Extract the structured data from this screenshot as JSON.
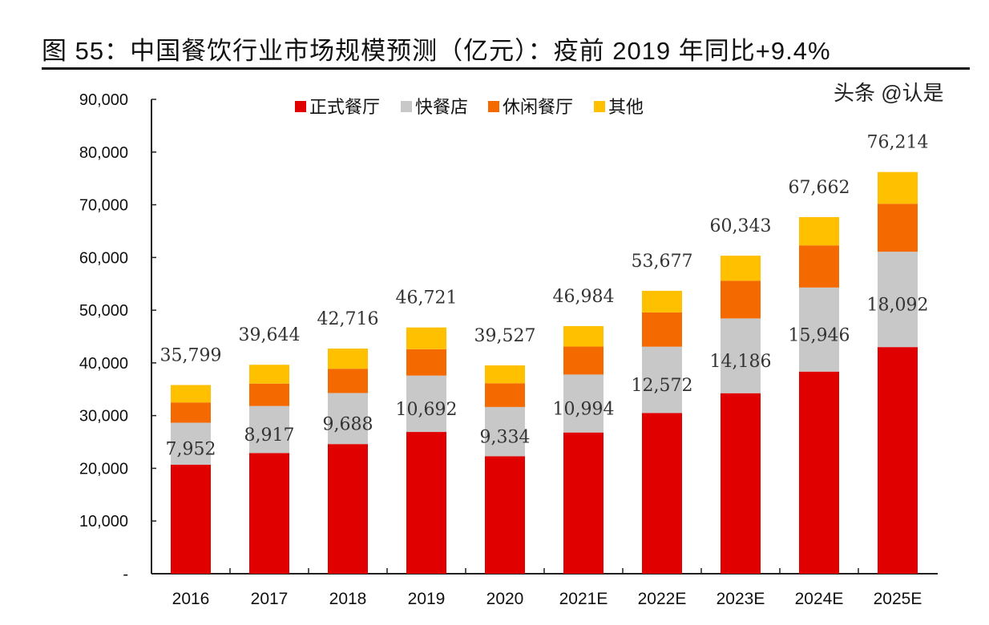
{
  "title": "图 55：中国餐饮行业市场规模预测（亿元）：疫前 2019 年同比+9.4%",
  "watermark": "头条 @认是",
  "chart_data": {
    "type": "bar",
    "stacked": true,
    "title": "图 55：中国餐饮行业市场规模预测（亿元）：疫前 2019 年同比+9.4%",
    "xlabel": "",
    "ylabel": "",
    "ylim": [
      0,
      90000
    ],
    "yticks": [
      0,
      10000,
      20000,
      30000,
      40000,
      50000,
      60000,
      70000,
      80000,
      90000
    ],
    "ytick_labels": [
      "-",
      "10,000",
      "20,000",
      "30,000",
      "40,000",
      "50,000",
      "60,000",
      "70,000",
      "80,000",
      "90,000"
    ],
    "grid": false,
    "legend_position": "top",
    "categories": [
      "2016",
      "2017",
      "2018",
      "2019",
      "2020",
      "2021E",
      "2022E",
      "2023E",
      "2024E",
      "2025E"
    ],
    "series": [
      {
        "name": "正式餐厅",
        "color": "#E00000",
        "values": [
          20700,
          22900,
          24600,
          26900,
          22300,
          26800,
          30500,
          34250,
          38350,
          43000
        ]
      },
      {
        "name": "快餐店",
        "color": "#C8C8C8",
        "values": [
          7952,
          8917,
          9688,
          10692,
          9334,
          10994,
          12572,
          14186,
          15946,
          18092
        ]
      },
      {
        "name": "休闲餐厅",
        "color": "#F46A00",
        "values": [
          3848,
          4250,
          4600,
          5000,
          4500,
          5300,
          6500,
          7150,
          8000,
          9100
        ]
      },
      {
        "name": "其他",
        "color": "#FFC000",
        "values": [
          3299,
          3577,
          3828,
          4129,
          3393,
          3890,
          4105,
          4757,
          5366,
          6022
        ]
      }
    ],
    "total_labels": [
      "35,799",
      "39,644",
      "42,716",
      "46,721",
      "39,527",
      "46,984",
      "53,677",
      "60,343",
      "67,662",
      "76,214"
    ],
    "segment_labels_series": "快餐店",
    "segment_labels": [
      "7,952",
      "8,917",
      "9,688",
      "10,692",
      "9,334",
      "10,994",
      "12,572",
      "14,186",
      "15,946",
      "18,092"
    ]
  }
}
